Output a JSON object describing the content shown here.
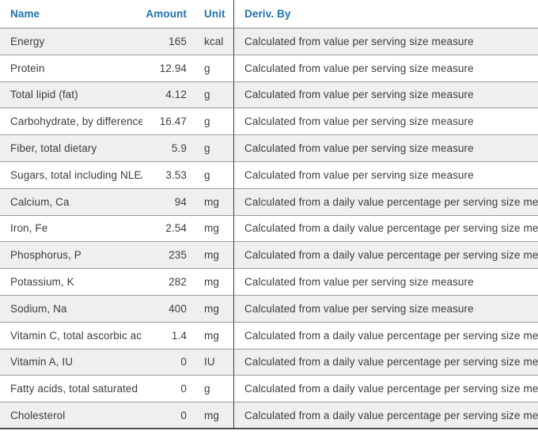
{
  "table": {
    "columns": [
      {
        "key": "name",
        "label": "Name"
      },
      {
        "key": "amount",
        "label": "Amount"
      },
      {
        "key": "unit",
        "label": "Unit"
      },
      {
        "key": "deriv",
        "label": "Deriv. By"
      }
    ],
    "rows": [
      {
        "name": "Energy",
        "amount": "165",
        "unit": "kcal",
        "deriv": "Calculated from value per serving size measure"
      },
      {
        "name": "Protein",
        "amount": "12.94",
        "unit": "g",
        "deriv": "Calculated from value per serving size measure"
      },
      {
        "name": "Total lipid (fat)",
        "amount": "4.12",
        "unit": "g",
        "deriv": "Calculated from value per serving size measure"
      },
      {
        "name": "Carbohydrate, by difference",
        "amount": "16.47",
        "unit": "g",
        "deriv": "Calculated from value per serving size measure"
      },
      {
        "name": "Fiber, total dietary",
        "amount": "5.9",
        "unit": "g",
        "deriv": "Calculated from value per serving size measure"
      },
      {
        "name": "Sugars, total including NLEA",
        "amount": "3.53",
        "unit": "g",
        "deriv": "Calculated from value per serving size measure"
      },
      {
        "name": "Calcium, Ca",
        "amount": "94",
        "unit": "mg",
        "deriv": "Calculated from a daily value percentage per serving size measure"
      },
      {
        "name": "Iron, Fe",
        "amount": "2.54",
        "unit": "mg",
        "deriv": "Calculated from a daily value percentage per serving size measure"
      },
      {
        "name": "Phosphorus, P",
        "amount": "235",
        "unit": "mg",
        "deriv": "Calculated from a daily value percentage per serving size measure"
      },
      {
        "name": "Potassium, K",
        "amount": "282",
        "unit": "mg",
        "deriv": "Calculated from value per serving size measure"
      },
      {
        "name": "Sodium, Na",
        "amount": "400",
        "unit": "mg",
        "deriv": "Calculated from value per serving size measure"
      },
      {
        "name": "Vitamin C, total ascorbic acid",
        "amount": "1.4",
        "unit": "mg",
        "deriv": "Calculated from a daily value percentage per serving size measure"
      },
      {
        "name": "Vitamin A, IU",
        "amount": "0",
        "unit": "IU",
        "deriv": "Calculated from a daily value percentage per serving size measure"
      },
      {
        "name": "Fatty acids, total saturated",
        "amount": "0",
        "unit": "g",
        "deriv": "Calculated from a daily value percentage per serving size measure"
      },
      {
        "name": "Cholesterol",
        "amount": "0",
        "unit": "mg",
        "deriv": "Calculated from a daily value percentage per serving size measure"
      }
    ]
  },
  "colors": {
    "header_text": "#2173ad",
    "row_alt_background": "#efefef",
    "cell_text": "#3d3d3d",
    "row_separator": "#9b9b9b",
    "bottom_border": "#4d4d4d",
    "column_divider": "#3f3f3f"
  }
}
